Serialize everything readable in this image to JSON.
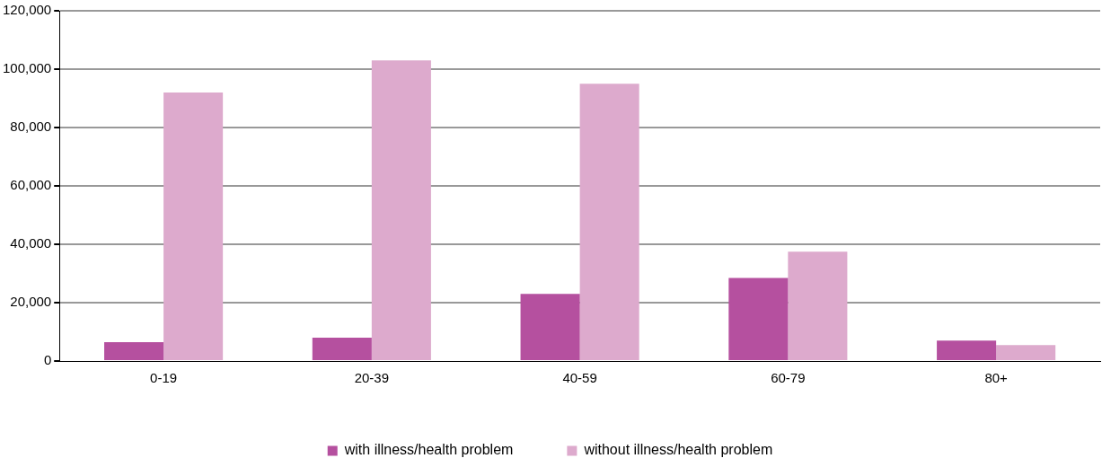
{
  "chart_data": {
    "type": "bar",
    "categories": [
      "0-19",
      "20-39",
      "40-59",
      "60-79",
      "80+"
    ],
    "series": [
      {
        "name": "with illness/health problem",
        "color": "#b5509f",
        "values": [
          6500,
          8000,
          23000,
          28500,
          7000
        ]
      },
      {
        "name": "without illness/health problem",
        "color": "#ddaacd",
        "values": [
          92000,
          103000,
          95000,
          37500,
          5500
        ]
      }
    ],
    "ylim": [
      0,
      120000
    ],
    "yticks": [
      0,
      {
        "value": 20000,
        "label": "20,000"
      },
      {
        "value": 40000,
        "label": "40,000"
      },
      {
        "value": 60000,
        "label": "60,000"
      },
      {
        "value": 80000,
        "label": "80,000"
      },
      {
        "value": 100000,
        "label": "100,000"
      },
      {
        "value": 120000,
        "label": "120,000"
      }
    ],
    "grid": "y",
    "legend": "bottom"
  }
}
